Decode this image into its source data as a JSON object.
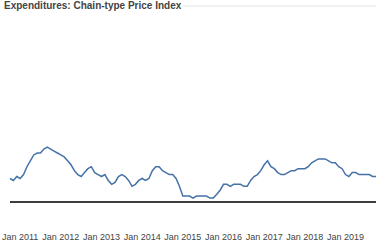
{
  "chart_data": {
    "type": "line",
    "title": "Expenditures: Chain-type Price Index",
    "categories": [
      null,
      null,
      null,
      "Jan 2011",
      null,
      null,
      null,
      null,
      null,
      null,
      null,
      null,
      null,
      null,
      null,
      "Jan 2012",
      null,
      null,
      null,
      null,
      null,
      null,
      null,
      null,
      null,
      null,
      null,
      "Jan 2013",
      null,
      null,
      null,
      null,
      null,
      null,
      null,
      null,
      null,
      null,
      null,
      "Jan 2014",
      null,
      null,
      null,
      null,
      null,
      null,
      null,
      null,
      null,
      null,
      null,
      "Jan 2015",
      null,
      null,
      null,
      null,
      null,
      null,
      null,
      null,
      null,
      null,
      null,
      "Jan 2016",
      null,
      null,
      null,
      null,
      null,
      null,
      null,
      null,
      null,
      null,
      null,
      "Jan 2017",
      null,
      null,
      null,
      null,
      null,
      null,
      null,
      null,
      null,
      null,
      null,
      "Jan 2018",
      null,
      null,
      null,
      null,
      null,
      null,
      null,
      null,
      null,
      null,
      null,
      "Jan 2019",
      null,
      null,
      null,
      null,
      null,
      null,
      null,
      null,
      null
    ],
    "values": [
      1.2,
      1.1,
      1.3,
      1.2,
      1.4,
      1.8,
      2.1,
      2.4,
      2.5,
      2.5,
      2.7,
      2.8,
      2.7,
      2.6,
      2.5,
      2.4,
      2.3,
      2.1,
      1.9,
      1.6,
      1.4,
      1.3,
      1.5,
      1.7,
      1.8,
      1.5,
      1.4,
      1.3,
      1.4,
      1.1,
      0.9,
      1.0,
      1.3,
      1.4,
      1.3,
      1.1,
      0.8,
      0.9,
      1.1,
      1.2,
      1.1,
      1.2,
      1.6,
      1.8,
      1.8,
      1.6,
      1.5,
      1.4,
      1.4,
      1.2,
      0.8,
      0.3,
      0.3,
      0.3,
      0.2,
      0.3,
      0.3,
      0.3,
      0.3,
      0.2,
      0.2,
      0.4,
      0.6,
      0.9,
      0.9,
      0.8,
      0.9,
      0.9,
      0.9,
      0.8,
      0.8,
      1.1,
      1.3,
      1.4,
      1.6,
      1.9,
      2.1,
      1.8,
      1.7,
      1.5,
      1.4,
      1.4,
      1.5,
      1.6,
      1.6,
      1.7,
      1.7,
      1.7,
      1.8,
      2.0,
      2.1,
      2.2,
      2.2,
      2.2,
      2.1,
      2.0,
      2.0,
      1.8,
      1.7,
      1.4,
      1.3,
      1.5,
      1.5,
      1.4,
      1.4,
      1.4,
      1.4,
      1.3,
      1.3
    ],
    "color": "#4572a7",
    "ylim": [
      0,
      10
    ],
    "yticks": [
      0,
      2,
      4,
      6,
      8,
      10
    ],
    "grid": true,
    "tick_labels": "x"
  }
}
